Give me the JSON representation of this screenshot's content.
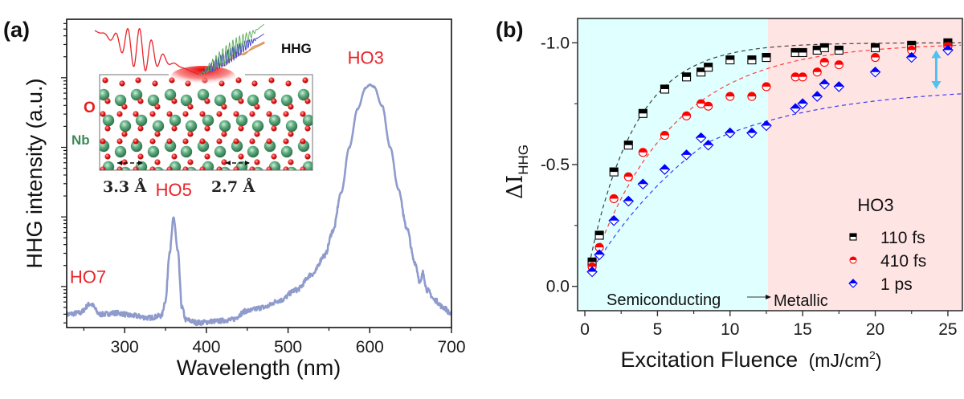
{
  "chart_data": [
    {
      "panel": "(a)",
      "type": "line",
      "title": "",
      "xlabel": "Wavelength (nm)",
      "ylabel": "HHG intensity (a.u.)",
      "xlim": [
        229,
        700
      ],
      "x_ticks": [
        300,
        400,
        500,
        600,
        700
      ],
      "y_scale": "log",
      "y_unit_note": "log10 intensity, arbitrary units (decades)",
      "ylim_log10": [
        -0.59,
        3.84
      ],
      "y_major_ticks_log10": [
        0,
        1,
        2,
        3
      ],
      "grid": false,
      "line_color": "#8e9bcc",
      "series": [
        {
          "name": "HHG spectrum",
          "points_log10": [
            [
              229,
              -0.4
            ],
            [
              245,
              -0.38
            ],
            [
              258,
              -0.25
            ],
            [
              270,
              -0.4
            ],
            [
              290,
              -0.38
            ],
            [
              310,
              -0.42
            ],
            [
              330,
              -0.45
            ],
            [
              345,
              -0.42
            ],
            [
              350,
              -0.2
            ],
            [
              355,
              0.5
            ],
            [
              360,
              0.98
            ],
            [
              365,
              0.5
            ],
            [
              370,
              -0.3
            ],
            [
              375,
              -0.48
            ],
            [
              390,
              -0.52
            ],
            [
              410,
              -0.5
            ],
            [
              430,
              -0.48
            ],
            [
              450,
              -0.35
            ],
            [
              470,
              -0.3
            ],
            [
              490,
              -0.2
            ],
            [
              510,
              -0.05
            ],
            [
              530,
              0.18
            ],
            [
              545,
              0.45
            ],
            [
              555,
              0.8
            ],
            [
              565,
              1.35
            ],
            [
              575,
              2.0
            ],
            [
              585,
              2.55
            ],
            [
              595,
              2.85
            ],
            [
              600,
              2.9
            ],
            [
              605,
              2.87
            ],
            [
              615,
              2.6
            ],
            [
              625,
              2.0
            ],
            [
              635,
              1.4
            ],
            [
              645,
              0.85
            ],
            [
              655,
              0.35
            ],
            [
              662,
              0.05
            ],
            [
              665,
              0.2
            ],
            [
              670,
              -0.05
            ],
            [
              680,
              -0.2
            ],
            [
              690,
              -0.3
            ],
            [
              700,
              -0.4
            ]
          ]
        }
      ],
      "annotations": [
        {
          "text": "HO7",
          "x": 255,
          "y_log10": 0.05,
          "color": "#e8232a"
        },
        {
          "text": "HO5",
          "x": 360,
          "y_log10": 1.3,
          "color": "#e8232a"
        },
        {
          "text": "HO3",
          "x": 595,
          "y_log10": 3.2,
          "color": "#e8232a"
        }
      ],
      "inset": {
        "label_hhg": "HHG",
        "label_o": "O",
        "label_nb": "Nb",
        "spacing_left": "3.3 Å",
        "spacing_right": "2.7 Å",
        "colors": {
          "o": "#e81c1c",
          "nb": "#3f8f5f",
          "o_label": "#e81c1c",
          "nb_label": "#3b8a55",
          "pulse": "#e8232a",
          "green_wave": "#5aaa55",
          "blue_wave": "#3a3ad0",
          "orange_wave": "#d78a48"
        }
      }
    },
    {
      "panel": "(b)",
      "type": "scatter",
      "title": "",
      "xlabel": "Excitation Fluence",
      "xlabel_unit": "(mJ/cm",
      "xlabel_unit_sup": "2",
      "xlabel_unit_close": ")",
      "ylabel_main": "ΔI",
      "ylabel_sub": "HHG",
      "xlim": [
        -0.5,
        26
      ],
      "ylim": [
        -0.1,
        1.1
      ],
      "y_inverted_label_sign": true,
      "x_ticks": [
        0,
        5,
        10,
        15,
        20,
        25
      ],
      "y_ticks": [
        0.0,
        0.5,
        1.0
      ],
      "y_tick_labels": [
        "0.0",
        "-0.5",
        "-1.0"
      ],
      "grid": false,
      "regions": [
        {
          "name": "Semiconducting",
          "x_range": [
            -0.5,
            12.6
          ],
          "color": "#e0ffff"
        },
        {
          "name": "Metallic",
          "x_range": [
            12.6,
            26
          ],
          "color": "#ffe4e4"
        }
      ],
      "region_text_left": "Semiconducting",
      "region_text_right": "Metallic",
      "legend_title": "HO3",
      "legend_position": "right-middle",
      "double_arrow": {
        "x": 24.2,
        "y_range": [
          0.81,
          0.97
        ],
        "color": "#4fc3f0"
      },
      "series": [
        {
          "name": "110 fs",
          "marker": "square",
          "color": "#000000",
          "x": [
            0.5,
            1.0,
            2.0,
            3.0,
            4.0,
            5.5,
            7.0,
            8.0,
            8.5,
            10.0,
            11.5,
            12.5,
            14.5,
            15.0,
            16.0,
            16.5,
            17.5,
            20.0,
            22.5,
            25.0
          ],
          "y": [
            0.1,
            0.21,
            0.47,
            0.58,
            0.71,
            0.81,
            0.86,
            0.88,
            0.9,
            0.93,
            0.93,
            0.94,
            0.96,
            0.96,
            0.97,
            0.98,
            0.97,
            0.98,
            0.99,
            1.0
          ],
          "fit": {
            "a": 1.0,
            "tau": 3.2
          }
        },
        {
          "name": "410 fs",
          "marker": "circle",
          "color": "#ff0000",
          "x": [
            0.5,
            1.0,
            2.0,
            3.0,
            4.0,
            5.5,
            7.0,
            8.0,
            8.5,
            10.0,
            11.5,
            12.5,
            14.5,
            15.0,
            16.0,
            16.5,
            17.5,
            20.0,
            22.5,
            25.0
          ],
          "y": [
            0.08,
            0.16,
            0.36,
            0.45,
            0.55,
            0.62,
            0.7,
            0.75,
            0.74,
            0.78,
            0.78,
            0.82,
            0.86,
            0.86,
            0.88,
            0.92,
            0.91,
            0.94,
            0.97,
            0.985
          ],
          "fit": {
            "a": 1.0,
            "tau": 5.6
          }
        },
        {
          "name": "1 ps",
          "marker": "diamond",
          "color": "#0000ff",
          "x": [
            0.5,
            1.0,
            2.0,
            3.0,
            4.0,
            5.5,
            7.0,
            8.0,
            8.5,
            10.0,
            11.5,
            12.5,
            14.5,
            15.0,
            16.0,
            16.5,
            17.5,
            20.0,
            22.5,
            25.0
          ],
          "y": [
            0.06,
            0.13,
            0.27,
            0.35,
            0.42,
            0.48,
            0.54,
            0.61,
            0.58,
            0.63,
            0.63,
            0.66,
            0.73,
            0.75,
            0.78,
            0.83,
            0.82,
            0.88,
            0.94,
            0.97
          ],
          "fit": {
            "a": 1.0,
            "tau": 10.0
          }
        }
      ]
    }
  ]
}
